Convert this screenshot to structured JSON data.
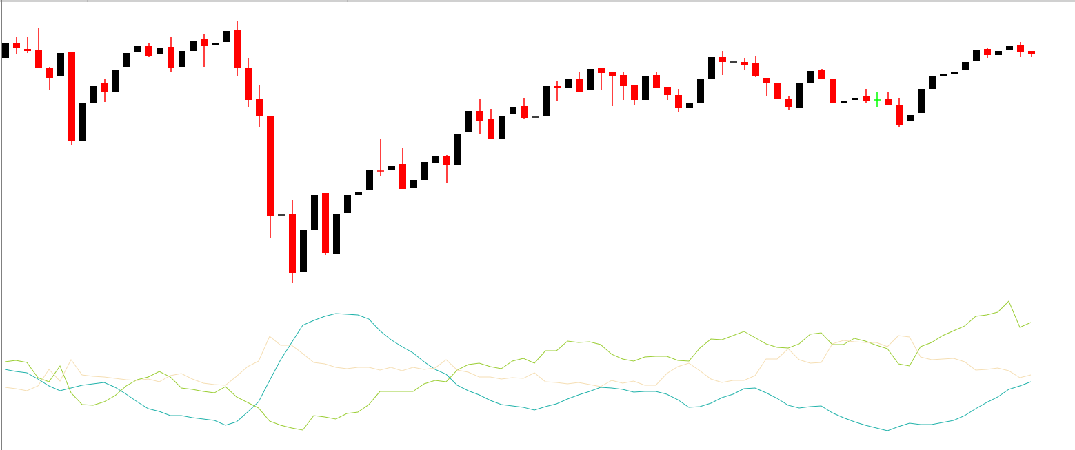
{
  "chart_data": [
    {
      "type": "candlestick",
      "title": "",
      "xlabel": "",
      "ylabel": "",
      "grid": false,
      "colors": {
        "bull": "#000000",
        "bear": "#ff0000",
        "doji_highlight": "#00ff00"
      },
      "highlight_index": 79,
      "ohlc": [
        [
          416,
          437,
          416,
          437
        ],
        [
          438,
          446,
          421,
          430
        ],
        [
          429,
          447,
          423,
          426
        ],
        [
          427,
          460,
          401,
          401
        ],
        [
          402,
          403,
          370,
          387
        ],
        [
          389,
          423,
          389,
          423
        ],
        [
          425,
          425,
          290,
          295
        ],
        [
          296,
          351,
          296,
          351
        ],
        [
          351,
          375,
          351,
          375
        ],
        [
          379,
          386,
          352,
          367
        ],
        [
          367,
          399,
          367,
          399
        ],
        [
          403,
          423,
          403,
          423
        ],
        [
          425,
          433,
          425,
          433
        ],
        [
          433,
          438,
          418,
          419
        ],
        [
          421,
          430,
          421,
          430
        ],
        [
          432,
          446,
          395,
          401
        ],
        [
          403,
          426,
          403,
          426
        ],
        [
          426,
          441,
          426,
          441
        ],
        [
          444,
          451,
          403,
          433
        ],
        [
          434,
          438,
          434,
          438
        ],
        [
          439,
          455,
          439,
          455
        ],
        [
          456,
          470,
          389,
          401
        ],
        [
          402,
          416,
          345,
          355
        ],
        [
          356,
          377,
          315,
          331
        ],
        [
          331,
          331,
          155,
          187
        ],
        [
          188,
          188,
          188,
          188
        ],
        [
          190,
          210,
          89,
          104
        ],
        [
          106,
          166,
          106,
          166
        ],
        [
          166,
          217,
          166,
          217
        ],
        [
          220,
          220,
          130,
          133
        ],
        [
          132,
          190,
          132,
          190
        ],
        [
          191,
          217,
          191,
          217
        ],
        [
          217,
          221,
          217,
          221
        ],
        [
          224,
          253,
          224,
          253
        ],
        [
          252,
          298,
          244,
          251
        ],
        [
          254,
          259,
          254,
          259
        ],
        [
          262,
          285,
          226,
          226
        ],
        [
          227,
          239,
          227,
          239
        ],
        [
          239,
          265,
          239,
          265
        ],
        [
          263,
          273,
          263,
          273
        ],
        [
          274,
          275,
          234,
          261
        ],
        [
          261,
          306,
          261,
          306
        ],
        [
          308,
          339,
          308,
          339
        ],
        [
          339,
          357,
          305,
          325
        ],
        [
          327,
          342,
          298,
          298
        ],
        [
          299,
          332,
          299,
          332
        ],
        [
          334,
          345,
          334,
          345
        ],
        [
          346,
          358,
          328,
          329
        ],
        [
          330,
          330,
          330,
          330
        ],
        [
          331,
          375,
          331,
          375
        ],
        [
          375,
          383,
          354,
          372
        ],
        [
          372,
          386,
          372,
          386
        ],
        [
          386,
          395,
          366,
          367
        ],
        [
          370,
          400,
          370,
          400
        ],
        [
          402,
          402,
          370,
          394
        ],
        [
          396,
          396,
          346,
          389
        ],
        [
          391,
          395,
          355,
          375
        ],
        [
          376,
          377,
          347,
          355
        ],
        [
          355,
          390,
          355,
          390
        ],
        [
          391,
          395,
          373,
          373
        ],
        [
          374,
          374,
          355,
          362
        ],
        [
          362,
          371,
          338,
          343
        ],
        [
          344,
          350,
          344,
          350
        ],
        [
          351,
          386,
          351,
          386
        ],
        [
          386,
          417,
          386,
          417
        ],
        [
          418,
          426,
          391,
          410
        ],
        [
          410,
          410,
          410,
          410
        ],
        [
          410,
          416,
          399,
          406
        ],
        [
          408,
          419,
          388,
          389
        ],
        [
          387,
          387,
          360,
          379
        ],
        [
          380,
          380,
          356,
          357
        ],
        [
          357,
          361,
          341,
          345
        ],
        [
          344,
          379,
          344,
          379
        ],
        [
          379,
          397,
          379,
          397
        ],
        [
          398,
          400,
          385,
          386
        ],
        [
          386,
          386,
          350,
          351
        ],
        [
          351,
          354,
          351,
          354
        ],
        [
          355,
          358,
          355,
          358
        ],
        [
          361,
          371,
          350,
          354
        ],
        [
          355,
          367,
          345,
          355
        ],
        [
          357,
          367,
          347,
          348
        ],
        [
          347,
          358,
          316,
          319
        ],
        [
          324,
          333,
          324,
          333
        ],
        [
          336,
          371,
          336,
          371
        ],
        [
          371,
          390,
          371,
          390
        ],
        [
          390,
          393,
          390,
          393
        ],
        [
          392,
          396,
          392,
          396
        ],
        [
          398,
          410,
          398,
          410
        ],
        [
          412,
          427,
          412,
          427
        ],
        [
          429,
          430,
          416,
          420
        ],
        [
          420,
          426,
          420,
          426
        ],
        [
          428,
          433,
          428,
          433
        ],
        [
          434,
          439,
          418,
          424
        ],
        [
          426,
          426,
          418,
          421
        ]
      ]
    },
    {
      "type": "line",
      "title": "",
      "xlabel": "",
      "ylabel": "",
      "grid": false,
      "series": [
        {
          "color": "#20b2aa",
          "values": [
            114,
            111,
            109,
            100,
            90,
            83,
            87,
            91,
            93,
            95,
            88,
            78,
            67,
            57,
            53,
            47,
            47,
            44,
            42,
            40,
            33,
            38,
            52,
            67,
            98,
            128,
            153,
            178,
            185,
            191,
            195,
            194,
            193,
            187,
            170,
            157,
            147,
            138,
            125,
            114,
            107,
            91,
            83,
            77,
            69,
            63,
            61,
            59,
            55,
            60,
            64,
            71,
            77,
            82,
            88,
            87,
            85,
            81,
            82,
            82,
            78,
            70,
            59,
            60,
            65,
            73,
            78,
            86,
            87,
            80,
            72,
            62,
            58,
            60,
            61,
            51,
            44,
            38,
            33,
            29,
            25,
            31,
            36,
            34,
            34,
            37,
            40,
            47,
            57,
            66,
            74,
            85,
            90,
            96
          ]
        },
        {
          "color": "#9acd32",
          "values": [
            125,
            127,
            124,
            102,
            96,
            119,
            80,
            63,
            62,
            67,
            76,
            90,
            99,
            103,
            111,
            103,
            87,
            85,
            82,
            80,
            89,
            74,
            66,
            58,
            39,
            33,
            29,
            26,
            47,
            45,
            42,
            50,
            52,
            63,
            82,
            82,
            82,
            82,
            93,
            98,
            96,
            113,
            121,
            123,
            118,
            115,
            126,
            130,
            123,
            141,
            141,
            155,
            153,
            154,
            150,
            136,
            129,
            126,
            132,
            133,
            133,
            127,
            126,
            145,
            158,
            157,
            163,
            169,
            160,
            151,
            146,
            145,
            151,
            165,
            167,
            150,
            150,
            159,
            155,
            149,
            144,
            122,
            119,
            147,
            153,
            163,
            170,
            177,
            191,
            193,
            197,
            213,
            175,
            182
          ]
        },
        {
          "color": "#f5deb3",
          "values": [
            88,
            86,
            83,
            90,
            114,
            97,
            128,
            106,
            104,
            103,
            101,
            99,
            98,
            100,
            96,
            105,
            108,
            100,
            94,
            92,
            91,
            104,
            118,
            126,
            162,
            149,
            149,
            137,
            124,
            122,
            117,
            115,
            117,
            117,
            113,
            117,
            112,
            117,
            114,
            116,
            128,
            113,
            110,
            103,
            103,
            100,
            102,
            101,
            109,
            96,
            95,
            93,
            95,
            92,
            89,
            98,
            94,
            97,
            91,
            91,
            108,
            118,
            123,
            112,
            100,
            95,
            98,
            98,
            105,
            129,
            129,
            144,
            128,
            123,
            124,
            151,
            156,
            154,
            153,
            153,
            147,
            163,
            161,
            132,
            128,
            129,
            130,
            125,
            113,
            114,
            116,
            112,
            102,
            106
          ]
        }
      ]
    }
  ]
}
